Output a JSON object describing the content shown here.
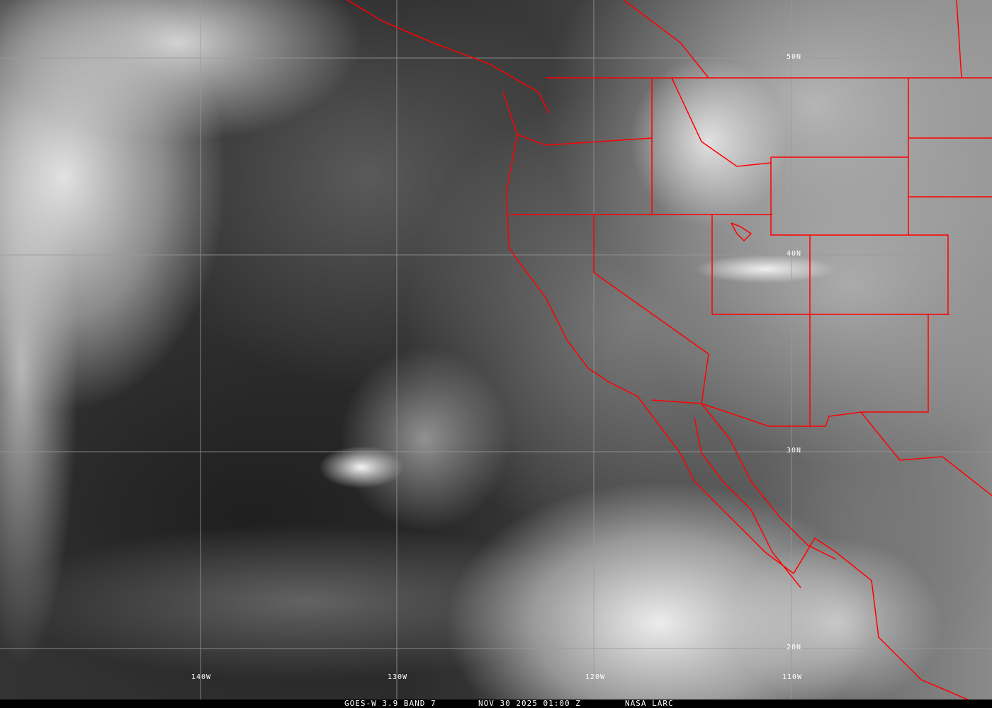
{
  "map": {
    "product": "GOES-W 3.9 BAND 7",
    "datetime": "NOV 30 2025 01:00 Z",
    "credit": "NASA LARC",
    "longitude_labels": [
      "140W",
      "130W",
      "120W",
      "110W"
    ],
    "latitude_labels": [
      "50N",
      "40N",
      "30N",
      "20N"
    ],
    "colors": {
      "borders": "#ff0000",
      "grid": "#9a9a9a",
      "text": "#ffffff"
    }
  }
}
